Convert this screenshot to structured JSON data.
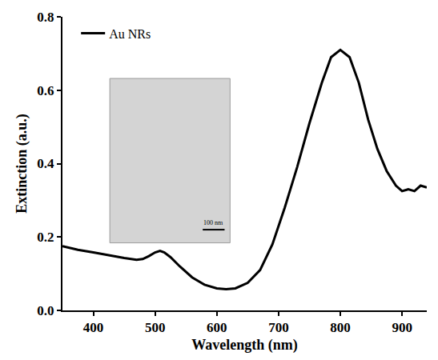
{
  "chart_data": {
    "type": "line",
    "x_label": "Wavelength (nm)",
    "y_label": "Extinction (a.u.)",
    "series": [
      {
        "name": "Au NRs",
        "color": "#000000",
        "x": [
          350,
          375,
          400,
          425,
          450,
          470,
          480,
          490,
          500,
          508,
          515,
          525,
          540,
          560,
          580,
          600,
          615,
          630,
          650,
          670,
          690,
          710,
          730,
          750,
          770,
          785,
          800,
          815,
          830,
          845,
          860,
          875,
          890,
          900,
          910,
          920,
          930,
          940
        ],
        "values": [
          0.175,
          0.165,
          0.158,
          0.15,
          0.143,
          0.138,
          0.14,
          0.148,
          0.158,
          0.162,
          0.158,
          0.145,
          0.12,
          0.09,
          0.07,
          0.06,
          0.058,
          0.06,
          0.075,
          0.11,
          0.18,
          0.28,
          0.39,
          0.51,
          0.62,
          0.69,
          0.71,
          0.69,
          0.62,
          0.52,
          0.44,
          0.38,
          0.34,
          0.325,
          0.33,
          0.325,
          0.34,
          0.335
        ]
      }
    ],
    "xlim": [
      350,
      940
    ],
    "xticks": [
      400,
      500,
      600,
      700,
      800,
      900
    ],
    "ylim": [
      0,
      0.8
    ],
    "yticks": [
      {
        "value": 0,
        "label": "0.0"
      },
      0.2,
      0.4,
      0.6,
      0.8
    ],
    "grid": false,
    "legend": "top left",
    "annotations": [
      {
        "text": "100 nm"
      }
    ]
  }
}
